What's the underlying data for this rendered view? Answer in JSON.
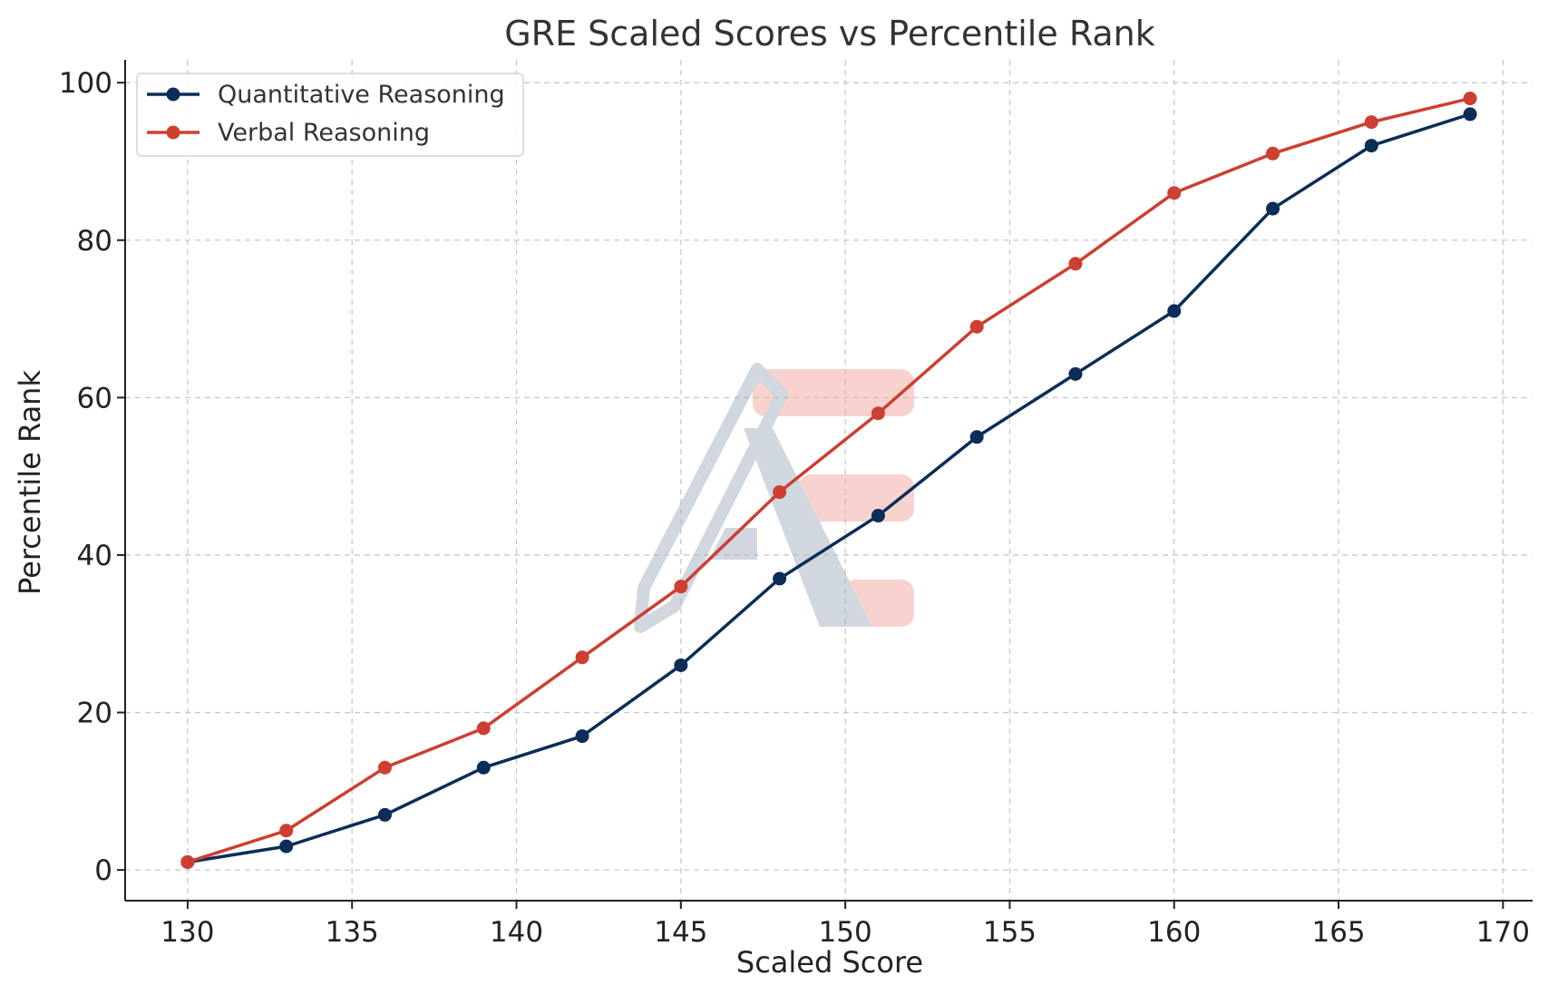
{
  "chart_data": {
    "type": "line",
    "title": "GRE Scaled Scores vs Percentile Rank",
    "xlabel": "Scaled Score",
    "ylabel": "Percentile Rank",
    "x": [
      130,
      133,
      136,
      139,
      142,
      145,
      148,
      151,
      154,
      157,
      160,
      163,
      166,
      169
    ],
    "xlim": [
      128.1,
      170.9
    ],
    "ylim": [
      -3.9,
      102.9
    ],
    "xticks": [
      130,
      135,
      140,
      145,
      150,
      155,
      160,
      165,
      170
    ],
    "yticks": [
      0,
      20,
      40,
      60,
      80,
      100
    ],
    "grid": true,
    "legend_position": "top-left",
    "series": [
      {
        "name": "Quantitative Reasoning",
        "color": "#0b2d57",
        "marker": "circle",
        "values": [
          1,
          3,
          7,
          13,
          17,
          26,
          37,
          45,
          55,
          63,
          71,
          84,
          92,
          96
        ]
      },
      {
        "name": "Verbal Reasoning",
        "color": "#cc3f31",
        "marker": "circle",
        "values": [
          1,
          5,
          13,
          18,
          27,
          36,
          48,
          58,
          69,
          77,
          86,
          91,
          95,
          98
        ]
      }
    ]
  }
}
